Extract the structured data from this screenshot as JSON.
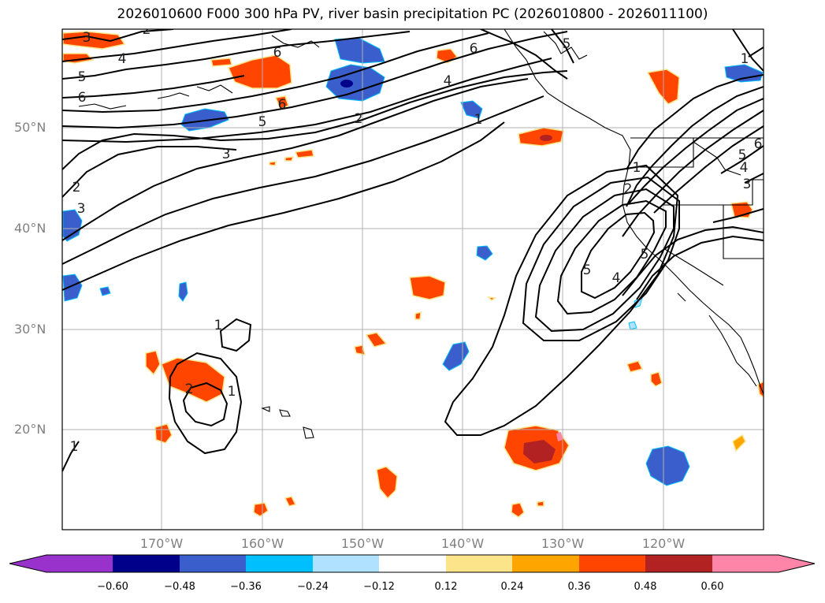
{
  "title": "2026010600 F000 300 hPa PV, river basin precipitation PC (2026010800 - 2026011100)",
  "lat_labels": [
    "50°N",
    "40°N",
    "30°N",
    "20°N"
  ],
  "lon_labels": [
    "170°W",
    "160°W",
    "150°W",
    "140°W",
    "130°W",
    "120°W"
  ],
  "colorbar": {
    "tick_labels": [
      "−0.60",
      "−0.48",
      "−0.36",
      "−0.24",
      "−0.12",
      "0.12",
      "0.24",
      "0.36",
      "0.48",
      "0.60"
    ],
    "colors": [
      "#9932cc",
      "#00008b",
      "#3a5fcd",
      "#00bfff",
      "#b0e2ff",
      "#ffffff",
      "#fce48a",
      "#ffa500",
      "#ff4500",
      "#b22222",
      "#ff85a8"
    ]
  },
  "pv_contour_labels": [
    "1",
    "2",
    "3",
    "4",
    "5",
    "6"
  ]
}
